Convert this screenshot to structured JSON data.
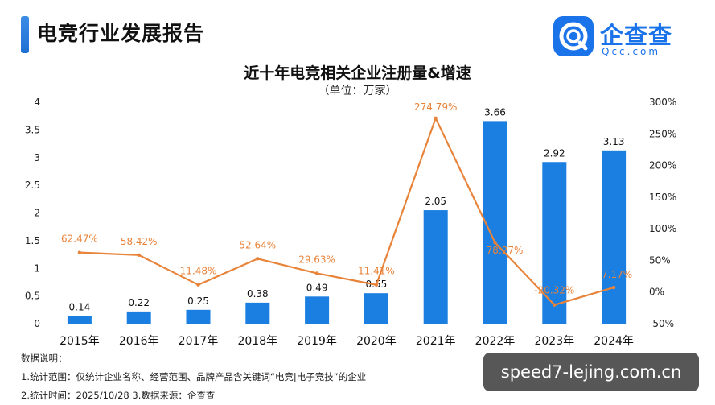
{
  "header": {
    "title": "电竞行业发展报告"
  },
  "logo": {
    "name": "企查查",
    "domain": "Qcc.com",
    "icon": "qcc-logo-icon",
    "color": "#1a73e8"
  },
  "chart_data": {
    "type": "bar",
    "title": "近十年电竞相关企业注册量&增速",
    "subtitle": "（单位：万家）",
    "categories": [
      "2015年",
      "2016年",
      "2017年",
      "2018年",
      "2019年",
      "2020年",
      "2021年",
      "2022年",
      "2023年",
      "2024年"
    ],
    "series": [
      {
        "type": "bar",
        "axis": "left",
        "color": "#1a7fe0",
        "values": [
          0.14,
          0.22,
          0.25,
          0.38,
          0.49,
          0.55,
          2.05,
          3.66,
          2.92,
          3.13
        ],
        "labels": [
          "0.14",
          "0.22",
          "0.25",
          "0.38",
          "0.49",
          "0.55",
          "2.05",
          "3.66",
          "2.92",
          "3.13"
        ]
      },
      {
        "type": "line",
        "axis": "right",
        "color": "#e8833a",
        "values": [
          62.47,
          58.42,
          11.48,
          52.64,
          29.63,
          11.41,
          274.79,
          78.27,
          -20.32,
          7.17
        ],
        "labels": [
          "62.47%",
          "58.42%",
          "11.48%",
          "52.64%",
          "29.63%",
          "11.41%",
          "274.79%",
          "78.27%",
          "-20.32%",
          "7.17%"
        ]
      }
    ],
    "y_left": {
      "min": 0,
      "max": 4,
      "ticks": [
        "0",
        "0.5",
        "1",
        "1.5",
        "2",
        "2.5",
        "3",
        "3.5",
        "4"
      ]
    },
    "y_right": {
      "min": -50,
      "max": 300,
      "ticks": [
        "-50%",
        "0%",
        "50%",
        "100%",
        "150%",
        "200%",
        "250%",
        "300%"
      ]
    },
    "grid": false
  },
  "notes": {
    "heading": "数据说明：",
    "line1": "1.统计范围：仅统计企业名称、经营范围、品牌产品含关键词“电竞|电子竞技”的企业",
    "line2": "2.统计时间：2025/10/28 3.数据来源：企查查"
  },
  "watermark": {
    "text": "speed7-lejing.com.cn"
  }
}
